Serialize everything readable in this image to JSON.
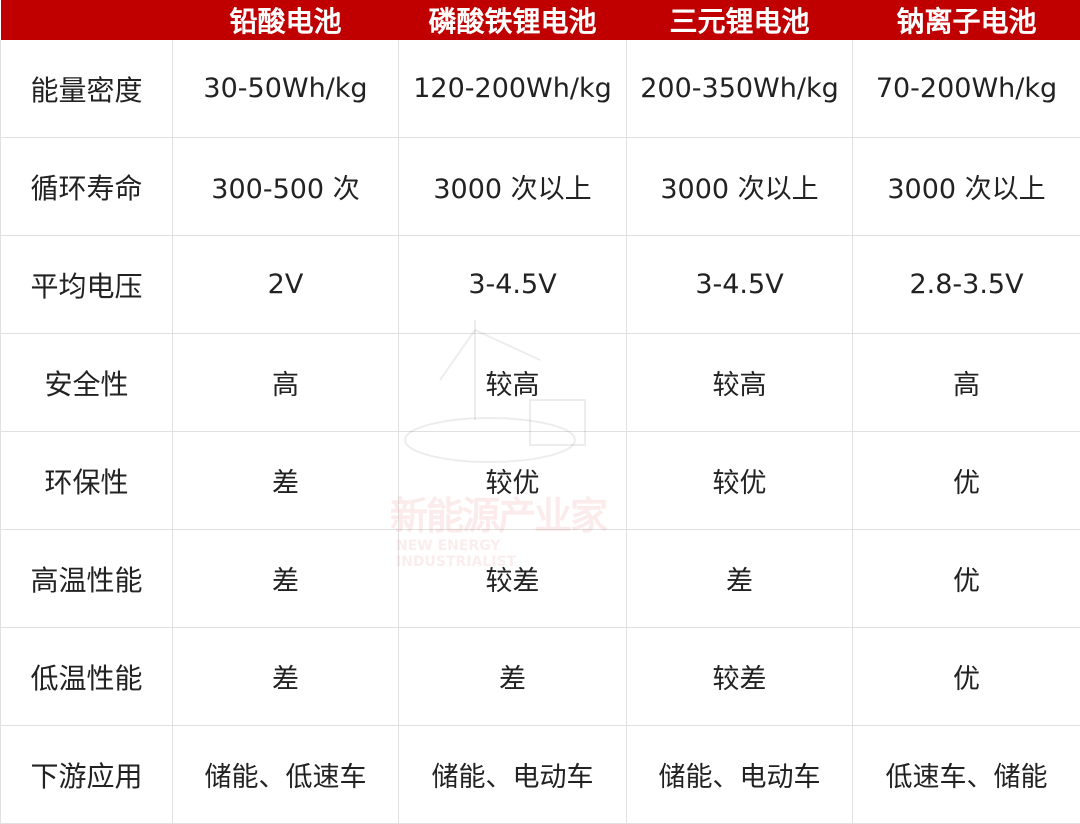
{
  "colors": {
    "header_bg": "#c00000",
    "header_text": "#ffffff"
  },
  "table": {
    "headers": [
      "",
      "铅酸电池",
      "磷酸铁锂电池",
      "三元锂电池",
      "钠离子电池"
    ],
    "rows": [
      [
        "能量密度",
        "30-50Wh/kg",
        "120-200Wh/kg",
        "200-350Wh/kg",
        "70-200Wh/kg"
      ],
      [
        "循环寿命",
        "300-500 次",
        "3000 次以上",
        "3000 次以上",
        "3000 次以上"
      ],
      [
        "平均电压",
        "2V",
        "3-4.5V",
        "3-4.5V",
        "2.8-3.5V"
      ],
      [
        "安全性",
        "高",
        "较高",
        "较高",
        "高"
      ],
      [
        "环保性",
        "差",
        "较优",
        "较优",
        "优"
      ],
      [
        "高温性能",
        "差",
        "较差",
        "差",
        "优"
      ],
      [
        "低温性能",
        "差",
        "差",
        "较差",
        "优"
      ],
      [
        "下游应用",
        "储能、低速车",
        "储能、电动车",
        "储能、电动车",
        "低速车、储能"
      ]
    ]
  },
  "watermark": {
    "cn": "新能源产业家",
    "en": "NEW ENERGY INDUSTRIALIST"
  }
}
